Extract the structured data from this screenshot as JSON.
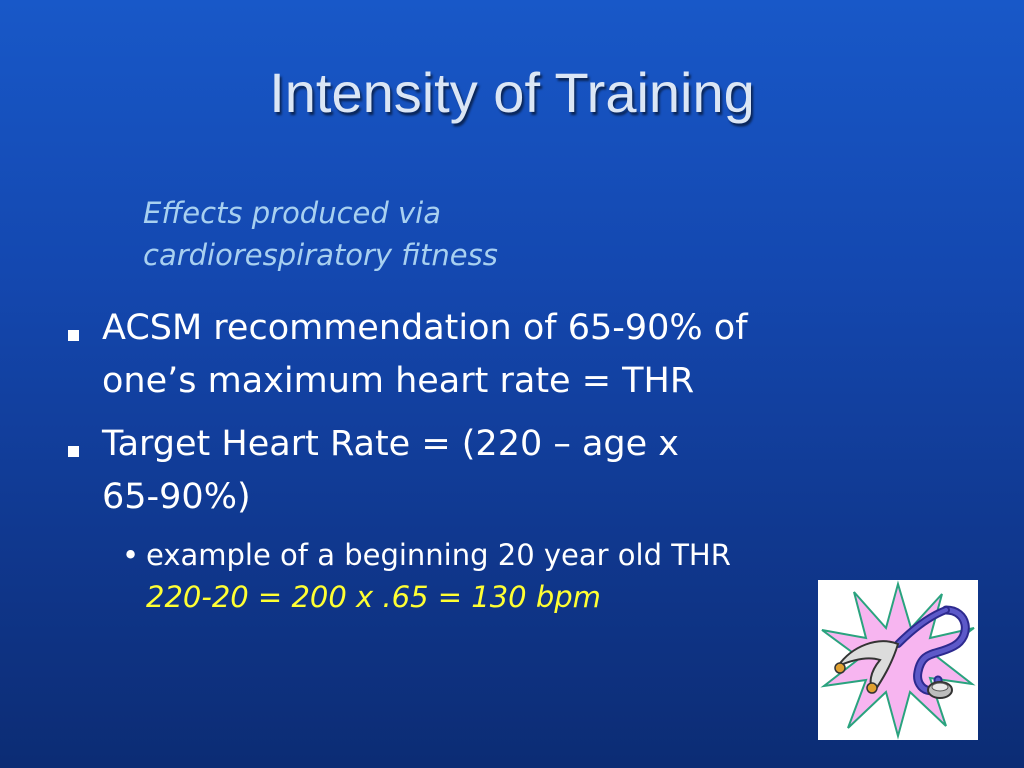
{
  "slide": {
    "title": "Intensity of Training",
    "subtitle": [
      "Effects produced via",
      "cardiorespiratory fitness"
    ],
    "bullets": [
      {
        "lines": [
          "ACSM recommendation of 65-90% of",
          "one’s maximum heart rate = THR"
        ]
      },
      {
        "lines": [
          "Target Heart Rate = (220 – age x",
          "65-90%)"
        ]
      }
    ],
    "sub_bullet": {
      "marker": "•",
      "text": "example of a beginning 20 year old THR",
      "formula": "220-20 = 200 x .65 = 130 bpm"
    },
    "clipart": {
      "icon": "stethoscope-icon",
      "colors": {
        "starburst": "#f7b5f0",
        "outline": "#2aa37e",
        "tubing": "#5d59c9"
      }
    },
    "colors": {
      "background": "#1448b0",
      "title": "#dbe6f5",
      "subtitle": "#a8d0f0",
      "body": "#ffffff",
      "formula": "#ffff33"
    }
  }
}
